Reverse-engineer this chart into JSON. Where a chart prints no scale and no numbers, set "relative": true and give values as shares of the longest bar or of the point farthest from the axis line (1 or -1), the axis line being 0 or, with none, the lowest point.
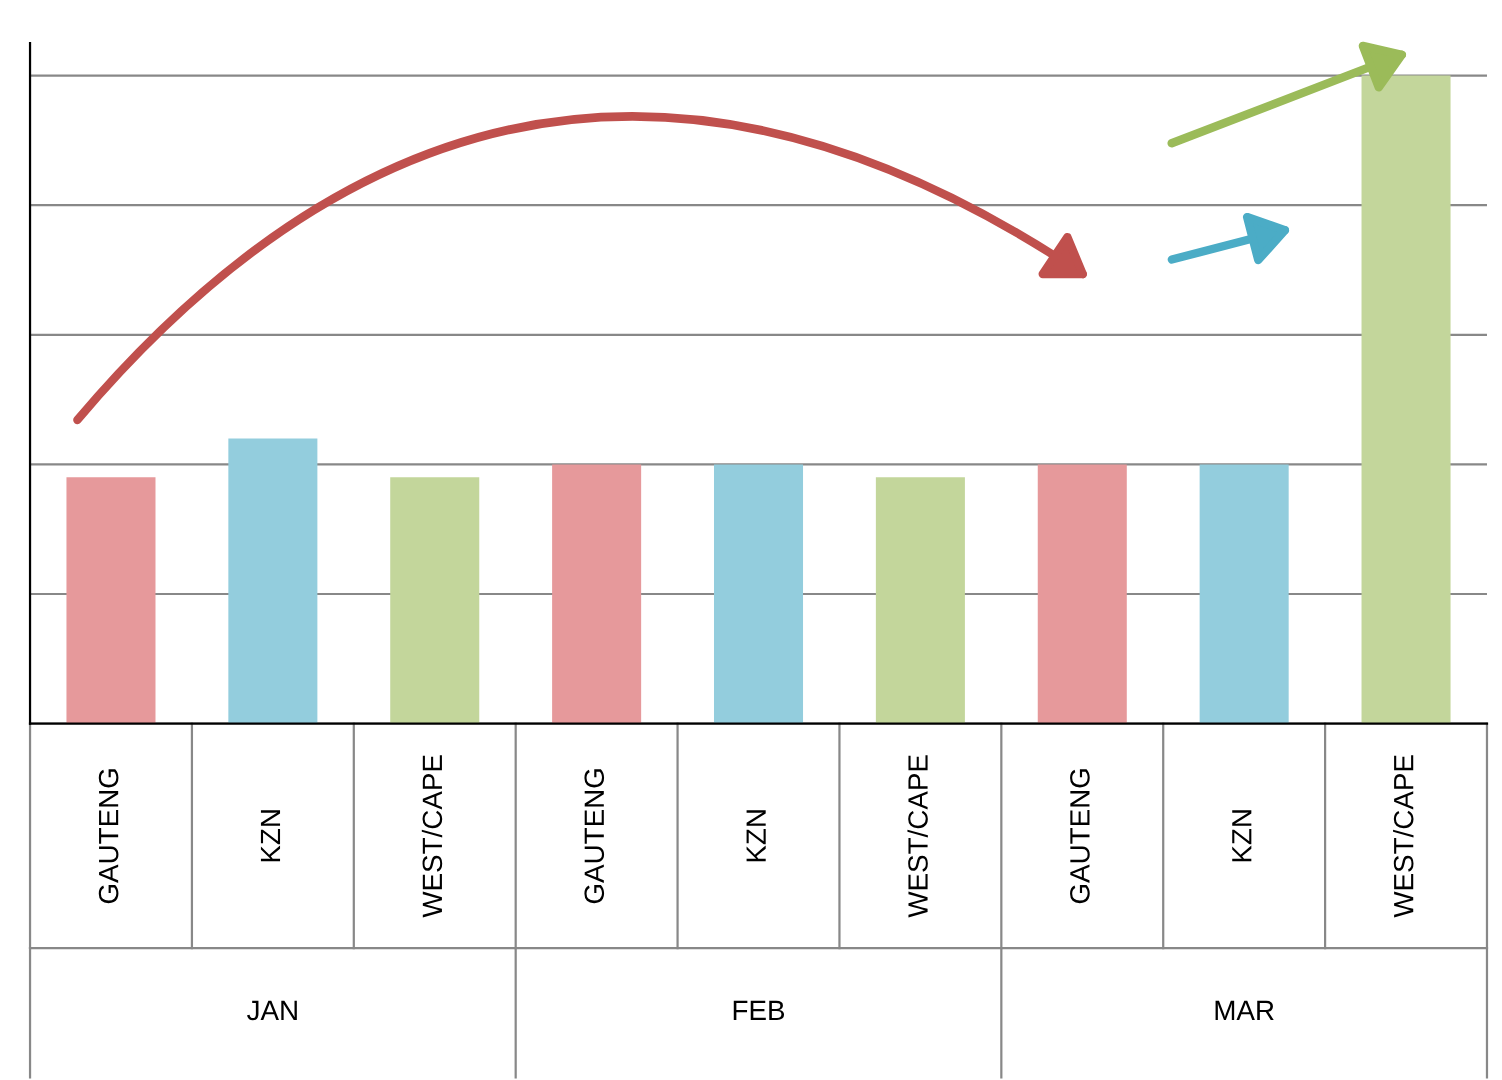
{
  "chart_data": {
    "type": "bar",
    "relative": true,
    "categories": [
      "GAUTENG",
      "KZN",
      "WEST/CAPE",
      "GAUTENG",
      "KZN",
      "WEST/CAPE",
      "GAUTENG",
      "KZN",
      "WEST/CAPE"
    ],
    "values": [
      0.38,
      0.44,
      0.38,
      0.4,
      0.4,
      0.38,
      0.4,
      0.4,
      1
    ],
    "colors": [
      "#e6999b",
      "#93cddd",
      "#c3d69b",
      "#e6999b",
      "#93cddd",
      "#c3d69b",
      "#e6999b",
      "#93cddd",
      "#c3d69b"
    ],
    "annotations": [
      "JAN",
      "FEB",
      "MAR"
    ],
    "grid": "y"
  }
}
